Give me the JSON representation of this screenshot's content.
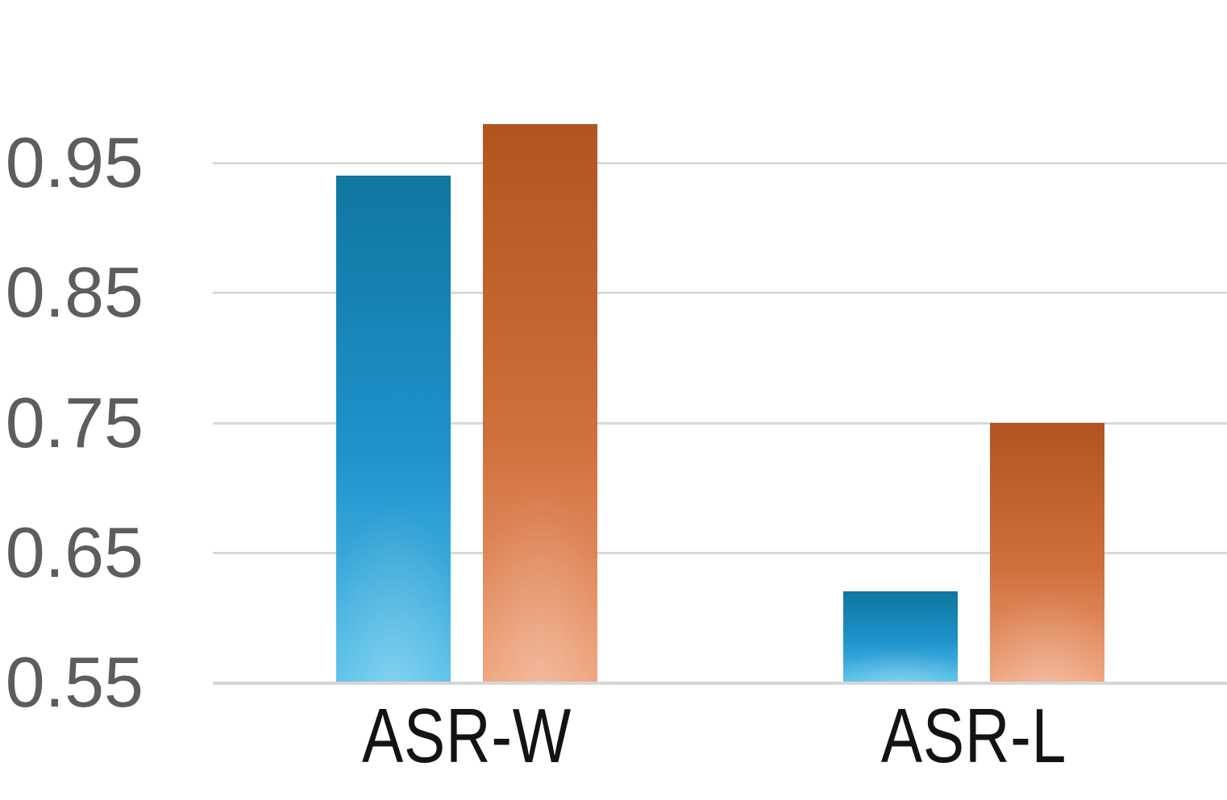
{
  "page": {
    "background": "#ffffff"
  },
  "chart_data": {
    "type": "bar",
    "title": "",
    "xlabel": "",
    "ylabel": "",
    "categories": [
      "ASR-W",
      "ASR-L"
    ],
    "series": [
      {
        "name": "blue",
        "values": [
          0.94,
          0.62
        ],
        "color_top": "#0f76a0",
        "color_mid": "#1f93cb",
        "color_bottom": "#55c0ea"
      },
      {
        "name": "orange",
        "values": [
          0.98,
          0.75
        ],
        "color_top": "#b2541e",
        "color_mid": "#cf6f3a",
        "color_bottom": "#efa078"
      }
    ],
    "y_ticks": [
      {
        "label": "0.95",
        "value": 0.95
      },
      {
        "label": "0.85",
        "value": 0.85
      },
      {
        "label": "0.75",
        "value": 0.75
      },
      {
        "label": "0.65",
        "value": 0.65
      },
      {
        "label": "0.55",
        "value": 0.55
      }
    ],
    "ylim": [
      0.55,
      1.0
    ],
    "grid": true,
    "legend_position": "none",
    "colors": {
      "grid_line": "#d9d9d9",
      "axis_line": "#d6d6d6",
      "y_tick_label": "#5d5d5d",
      "category_label": "#131313"
    }
  }
}
